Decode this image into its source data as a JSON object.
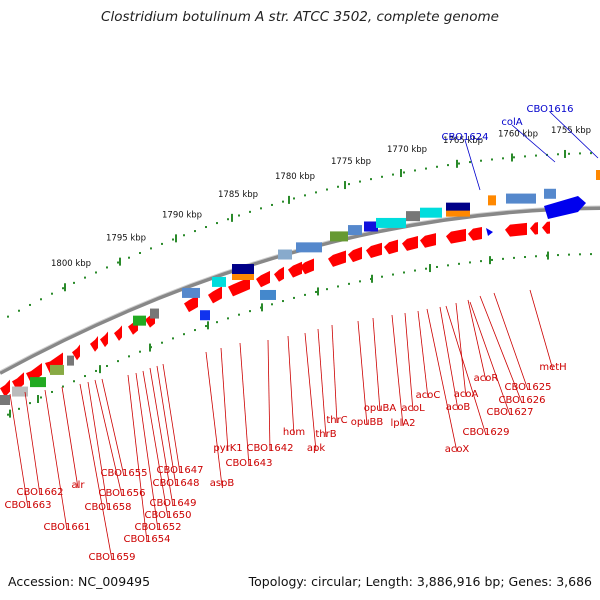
{
  "title": "Clostridium botulinum A str. ATCC 3502, complete genome",
  "footer": {
    "accession": "Accession: NC_009495",
    "topology": "Topology: circular; Length: 3,886,916 bp; Genes: 3,686"
  },
  "scale": {
    "unit": "kbp",
    "ticks": [
      "1755 kbp",
      "1760 kbp",
      "1765 kbp",
      "1770 kbp",
      "1775 kbp",
      "1780 kbp",
      "1785 kbp",
      "1790 kbp",
      "1795 kbp",
      "1800 kbp"
    ]
  },
  "colors": {
    "forward_gene": "#ff0000",
    "reverse_gene": "#ff0000",
    "label_forward": "#0000cc",
    "label_reverse": "#cc0000",
    "backbone": "#888888",
    "tick": "#2a8a2a"
  },
  "labels_forward": [
    "CBO1624",
    "colA",
    "CBO1616"
  ],
  "labels_reverse": [
    "metH",
    "CBO1625",
    "CBO1626",
    "acoR",
    "CBO1627",
    "acoA",
    "CBO1629",
    "acoB",
    "acoX",
    "acoC",
    "acoL",
    "lplA2",
    "opuBA",
    "opuBB",
    "thrC",
    "thrB",
    "apk",
    "hom",
    "CBO1642",
    "CBO1643",
    "pyrK1",
    "aspB",
    "CBO1647",
    "CBO1648",
    "CBO1649",
    "CBO1650",
    "CBO1652",
    "CBO1654",
    "CBO1655",
    "CBO1656",
    "CBO1658",
    "CBO1659",
    "alr",
    "CBO1661",
    "CBO1662",
    "CBO1663"
  ]
}
